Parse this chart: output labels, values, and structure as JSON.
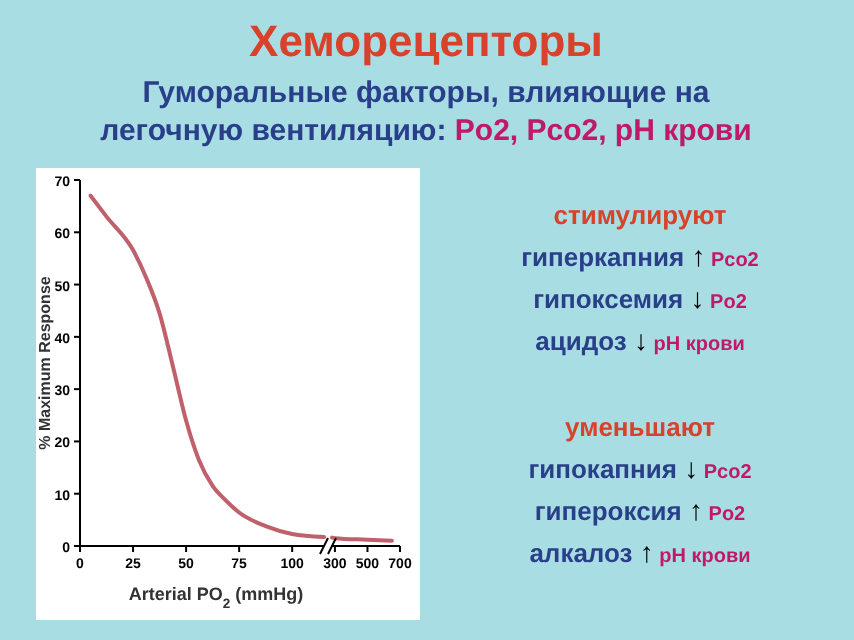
{
  "chart_data": [
    {
      "type": "line",
      "title": "Хеморецепторы",
      "subtitle": "Гуморальные факторы, влияющие на легочную вентиляцию: Po2, Pco2, pH крови",
      "xlabel": "Arterial PO$_{2}$ (mmHg)",
      "ylabel": "% Maximum Response",
      "x": [
        5,
        12.5,
        25,
        31,
        37.5,
        44,
        50,
        56,
        62.5,
        68,
        75,
        87.5,
        100,
        115
      ],
      "series": [
        {
          "color": "#c0606a",
          "values": [
            67,
            63,
            56.6,
            51.5,
            44.5,
            34,
            24,
            16.5,
            11.5,
            9,
            6.4,
            3.8,
            2.3,
            1.7
          ]
        }
      ],
      "xlim": [
        0,
        115
      ],
      "xticks": [
        0,
        25,
        50,
        75,
        100
      ],
      "ylim": [
        0,
        70
      ],
      "yticks": [
        0,
        10,
        20,
        30,
        40,
        50,
        60,
        70
      ],
      "grid": false,
      "marker": "none",
      "line_style": "solid",
      "annotations": [
        "стимулируют",
        "гиперкапния ↑ Pco2",
        "гипоксемия ↓ Po2",
        "ацидоз ↓ pH крови",
        "уменьшают",
        "гипокапния ↓ Pco2",
        "гипероксия ↑ Po2",
        "алкалоз ↑ pH крови"
      ]
    },
    {
      "type": "line",
      "x": [
        282,
        300,
        500,
        650
      ],
      "series": [
        {
          "color": "#c0606a",
          "values": [
            1.6,
            1.5,
            1.2,
            1
          ]
        }
      ],
      "xlim": [
        282,
        700
      ],
      "xticks": [
        300,
        500,
        700
      ],
      "ylim": [
        0,
        70
      ],
      "tick_labels": "x",
      "grid": false,
      "marker": "none",
      "line_style": "solid"
    }
  ]
}
